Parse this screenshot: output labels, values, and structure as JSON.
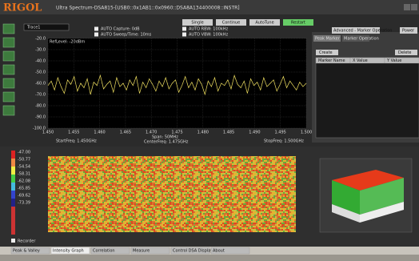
{
  "window": {
    "logo": "RIGOL",
    "title": "Ultra Spectrum-DSA815-[USB0::0x1AB1::0x0960::DSA8A134400008::INSTR]"
  },
  "toolbar": {
    "mode": "Trace1",
    "checks": [
      "AUTO Capture: 0dB",
      "AUTO Sweep/Time: 10ms",
      "AUTO RBW: 100kHz",
      "AUTO VBW: 100kHz"
    ],
    "buttons": [
      "Single",
      "Continue",
      "AutoTune",
      "Restart"
    ],
    "dropdown": "Advanced - Marker Operation",
    "power": "Power"
  },
  "spectrum": {
    "ref_level": "RefLevel: -20dBm",
    "ylim": [
      -100,
      -20
    ],
    "yticks": [
      {
        "value": -20,
        "label": "-20.0"
      },
      {
        "value": -30,
        "label": "-30.0"
      },
      {
        "value": -40,
        "label": "-40.0"
      },
      {
        "value": -50,
        "label": "-50.0"
      },
      {
        "value": -60,
        "label": "-60.0"
      },
      {
        "value": -70,
        "label": "-70.0"
      },
      {
        "value": -80,
        "label": "-80.0"
      },
      {
        "value": -90,
        "label": "-90.0"
      },
      {
        "value": -100,
        "label": "-100.0"
      }
    ],
    "xlim": [
      1.45,
      1.5
    ],
    "xticks": [
      {
        "value": 1.45,
        "label": "1.450"
      },
      {
        "value": 1.455,
        "label": "1.455"
      },
      {
        "value": 1.46,
        "label": "1.460"
      },
      {
        "value": 1.465,
        "label": "1.465"
      },
      {
        "value": 1.47,
        "label": "1.470"
      },
      {
        "value": 1.475,
        "label": "1.475"
      },
      {
        "value": 1.48,
        "label": "1.480"
      },
      {
        "value": 1.485,
        "label": "1.485"
      },
      {
        "value": 1.49,
        "label": "1.490"
      },
      {
        "value": 1.495,
        "label": "1.495"
      },
      {
        "value": 1.5,
        "label": "1.500"
      }
    ],
    "start": "StartFreq: 1.450GHz",
    "span": "Span: 50MHz",
    "center": "CenterFreq: 1.475GHz",
    "stop": "StopFreq: 1.500GHz",
    "trace": [
      -62,
      -58,
      -66,
      -55,
      -63,
      -69,
      -57,
      -61,
      -54,
      -67,
      -60,
      -64,
      -56,
      -70,
      -59,
      -62,
      -53,
      -65,
      -61,
      -58,
      -68,
      -55,
      -63,
      -60,
      -66,
      -57,
      -62,
      -54,
      -69,
      -59,
      -64,
      -56,
      -61,
      -67,
      -58,
      -63,
      -55,
      -65,
      -60,
      -57,
      -68,
      -62,
      -54,
      -64,
      -59,
      -66,
      -56,
      -61,
      -70,
      -58,
      -63,
      -55,
      -67,
      -60,
      -62,
      -57,
      -65,
      -53,
      -61,
      -64,
      -58,
      -69,
      -56,
      -62,
      -59,
      -66,
      -55,
      -63,
      -60,
      -57,
      -67,
      -61,
      -54,
      -64,
      -58,
      -62,
      -66,
      -59,
      -63,
      -60
    ]
  },
  "marker_panel": {
    "tabs": [
      "Peak Marker",
      "Marker Operation"
    ],
    "create": "Create",
    "delete": "Delete",
    "columns": [
      "Marker Name",
      "X Value",
      "Y Value"
    ]
  },
  "intensity": {
    "scale": [
      "-47.00",
      "-50.77",
      "-54.54",
      "-58.31",
      "-62.08",
      "-65.85",
      "-69.62",
      "-73.39"
    ],
    "recorder": "Recorder"
  },
  "tabs": [
    "Peak & Valley",
    "Intensity Graph",
    "Correlation",
    "Measure",
    "Control DSA Display",
    "About"
  ]
}
